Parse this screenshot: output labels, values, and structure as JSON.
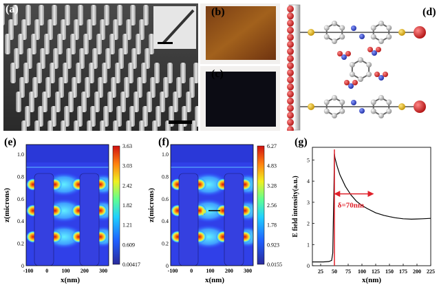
{
  "panels": {
    "a": {
      "label": "(a)"
    },
    "b": {
      "label": "(b)"
    },
    "c": {
      "label": "(c)"
    },
    "d": {
      "label": "(d)"
    },
    "e": {
      "label": "(e)"
    },
    "f": {
      "label": "(f)"
    },
    "g": {
      "label": "(g)"
    }
  },
  "colorbar_e": {
    "ticks": [
      "3.63",
      "3.03",
      "2.42",
      "1.82",
      "1.21",
      "0.609",
      "0.00417"
    ]
  },
  "colorbar_f": {
    "ticks": [
      "6.27",
      "4.83",
      "3.28",
      "2.56",
      "1.78",
      "0.923",
      "0.0155"
    ]
  },
  "field_map": {
    "ylabel": "z(microns)",
    "xlabel": "x(nm)",
    "yticks": [
      "0",
      "0.2",
      "0.4",
      "0.6",
      "0.8",
      "1.0"
    ],
    "xticks": [
      "-100",
      "0",
      "100",
      "200",
      "300"
    ],
    "point_label": "p"
  },
  "chart_data": {
    "type": "line",
    "xlabel": "x(nm)",
    "ylabel": "E field intensity(a.u.)",
    "xticks": [
      "25",
      "50",
      "75",
      "100",
      "125",
      "150",
      "175",
      "200",
      "225"
    ],
    "yticks": [
      "0",
      "1",
      "2",
      "3",
      "4",
      "5"
    ],
    "xlim": [
      10,
      225
    ],
    "ylim": [
      0,
      5.6
    ],
    "annotation": "δ=70nm",
    "x": [
      10,
      20,
      30,
      40,
      45,
      47,
      49,
      50,
      51,
      55,
      60,
      70,
      80,
      90,
      100,
      110,
      125,
      140,
      150,
      160,
      175,
      190,
      200,
      210,
      225
    ],
    "y": [
      0.18,
      0.18,
      0.18,
      0.2,
      0.25,
      0.6,
      3.5,
      5.3,
      5.1,
      4.7,
      4.3,
      3.75,
      3.35,
      3.05,
      2.85,
      2.7,
      2.5,
      2.38,
      2.32,
      2.27,
      2.22,
      2.2,
      2.21,
      2.22,
      2.24
    ]
  },
  "colors": {
    "arrow": "#e0202a",
    "gold": "#d8b420",
    "red_atom": "#c41a1a"
  }
}
